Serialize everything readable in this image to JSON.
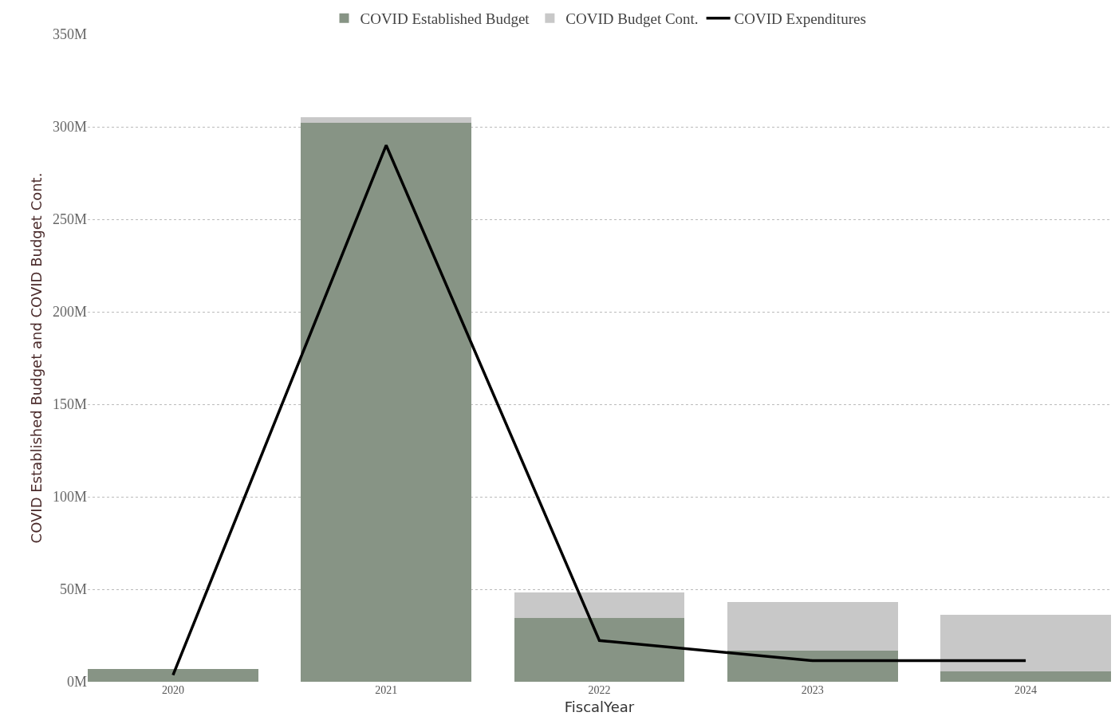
{
  "chart_data": {
    "type": "bar",
    "stacked": true,
    "xlabel": "FiscalYear",
    "ylabel": "COVID Established Budget and COVID Budget Cont.",
    "categories": [
      "2020",
      "2021",
      "2022",
      "2023",
      "2024"
    ],
    "series": [
      {
        "name": "COVID Established Budget",
        "color": "#879485",
        "values": [
          6.7,
          302,
          34.5,
          16.7,
          5.8
        ]
      },
      {
        "name": "COVID Budget Cont.",
        "color": "#c8c8c8",
        "values": [
          null,
          3,
          13.7,
          26.4,
          30.2
        ]
      },
      {
        "name": "COVID Expenditures",
        "type": "line",
        "color": "#000000",
        "values": [
          3.6,
          290,
          22.3,
          11.4,
          11.4
        ]
      }
    ],
    "ylim": [
      0,
      350
    ],
    "yticks": [
      {
        "value": 0,
        "label": "0M"
      },
      {
        "value": 50,
        "label": "50M"
      },
      {
        "value": 100,
        "label": "100M"
      },
      {
        "value": 150,
        "label": "150M"
      },
      {
        "value": 200,
        "label": "200M"
      },
      {
        "value": 250,
        "label": "250M"
      },
      {
        "value": 300,
        "label": "300M"
      },
      {
        "value": 350,
        "label": "350M"
      }
    ],
    "grid": "y",
    "legend": "top",
    "marker": "none",
    "line_style": "solid"
  }
}
